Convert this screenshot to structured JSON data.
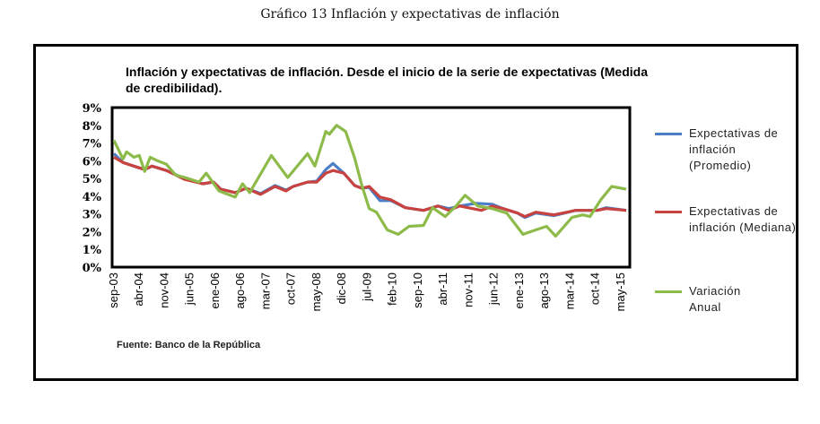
{
  "figure_title": "Gráfico 13 Inflación y expectativas de inflación",
  "source": "Fuente: Banco de la República",
  "chart_data": {
    "type": "line",
    "title": "Inflación y expectativas de inflación. Desde el inicio de la serie de expectativas (Medida de credibilidad).",
    "xlabel": "",
    "ylabel": "",
    "ylim": [
      0,
      9
    ],
    "yticks": [
      "0%",
      "1%",
      "2%",
      "3%",
      "4%",
      "5%",
      "6%",
      "7%",
      "8%",
      "9%"
    ],
    "x_unit": "months since sep-03",
    "xlim": [
      0,
      142
    ],
    "categories": [
      "sep-03",
      "abr-04",
      "nov-04",
      "jun-05",
      "ene-06",
      "ago-06",
      "mar-07",
      "oct-07",
      "may-08",
      "dic-08",
      "jul-09",
      "feb-10",
      "sep-10",
      "abr-11",
      "nov-11",
      "jun-12",
      "ene-13",
      "ago-13",
      "mar-14",
      "oct-14",
      "may-15"
    ],
    "category_step_months": 7,
    "legend_position": "right",
    "series": [
      {
        "name": "Expectativas de inflación (Promedio)",
        "color": "#4a7fc8",
        "x": [
          0,
          2.5,
          5.5,
          8.5,
          10.5,
          14.5,
          19.5,
          24.5,
          27.5,
          29.5,
          33.5,
          36.5,
          40.5,
          44.5,
          47.5,
          49.5,
          53.5,
          56,
          58.5,
          60.5,
          63.5,
          66.5,
          68.5,
          70.5,
          73.5,
          76.5,
          80.5,
          85.5,
          89.5,
          92.5,
          95.5,
          100,
          104.5,
          107.5,
          111.5,
          113.5,
          116.5,
          121.5,
          127.5,
          133.5,
          136,
          141.5
        ],
        "y": [
          6.4,
          5.9,
          5.7,
          5.5,
          5.7,
          5.45,
          5.0,
          4.7,
          4.8,
          4.4,
          4.2,
          4.45,
          4.15,
          4.6,
          4.35,
          4.55,
          4.8,
          4.85,
          5.5,
          5.85,
          5.3,
          4.6,
          4.45,
          4.5,
          3.75,
          3.75,
          3.35,
          3.2,
          3.45,
          3.3,
          3.45,
          3.6,
          3.55,
          3.3,
          3.05,
          2.8,
          3.05,
          2.9,
          3.2,
          3.2,
          3.35,
          3.2
        ]
      },
      {
        "name": "Expectativas de inflación (Mediana)",
        "color": "#c8423f",
        "x": [
          0,
          2.5,
          5.5,
          8.5,
          10.5,
          14.5,
          19.5,
          24.5,
          27.5,
          29.5,
          33.5,
          36.5,
          40.5,
          44.5,
          47.5,
          49.5,
          53.5,
          56,
          58.5,
          60.5,
          63.5,
          66.5,
          68.5,
          70.5,
          73.5,
          76.5,
          80.5,
          85.5,
          89.5,
          92.5,
          95.5,
          101.5,
          104.5,
          107.5,
          111.5,
          113.5,
          116.5,
          121.5,
          127.5,
          133.5,
          136,
          141.5
        ],
        "y": [
          6.2,
          5.9,
          5.7,
          5.5,
          5.7,
          5.45,
          4.95,
          4.7,
          4.8,
          4.4,
          4.2,
          4.45,
          4.1,
          4.55,
          4.3,
          4.55,
          4.8,
          4.8,
          5.3,
          5.45,
          5.3,
          4.6,
          4.45,
          4.55,
          3.95,
          3.8,
          3.35,
          3.2,
          3.45,
          3.2,
          3.45,
          3.2,
          3.45,
          3.3,
          3.05,
          2.85,
          3.1,
          2.95,
          3.2,
          3.2,
          3.3,
          3.2
        ]
      },
      {
        "name": "Variación Anual",
        "color": "#8dbb4a",
        "x": [
          0,
          2.5,
          3.5,
          5.5,
          7,
          8.5,
          10,
          12,
          14.5,
          17,
          20.5,
          23.5,
          25.5,
          29,
          33.5,
          35.5,
          37.5,
          43.5,
          48,
          53.5,
          55.5,
          58.5,
          59.5,
          61.5,
          64,
          66.5,
          68.5,
          70.5,
          72.5,
          75.5,
          78.5,
          81.5,
          85.5,
          88,
          91.5,
          94.5,
          97,
          100.5,
          104.5,
          108.5,
          113,
          116.5,
          119.5,
          122,
          126.5,
          129.5,
          131.5,
          134.5,
          137.5,
          141.5
        ],
        "y": [
          7.15,
          6.1,
          6.5,
          6.2,
          6.3,
          5.4,
          6.2,
          6.0,
          5.8,
          5.2,
          5.0,
          4.8,
          5.3,
          4.3,
          3.95,
          4.7,
          4.2,
          6.3,
          5.05,
          6.4,
          5.7,
          7.65,
          7.5,
          8.0,
          7.65,
          6.15,
          4.6,
          3.3,
          3.1,
          2.1,
          1.85,
          2.3,
          2.35,
          3.35,
          2.85,
          3.45,
          4.05,
          3.45,
          3.3,
          3.05,
          1.85,
          2.1,
          2.3,
          1.75,
          2.8,
          2.95,
          2.85,
          3.8,
          4.55,
          4.4
        ]
      }
    ]
  }
}
